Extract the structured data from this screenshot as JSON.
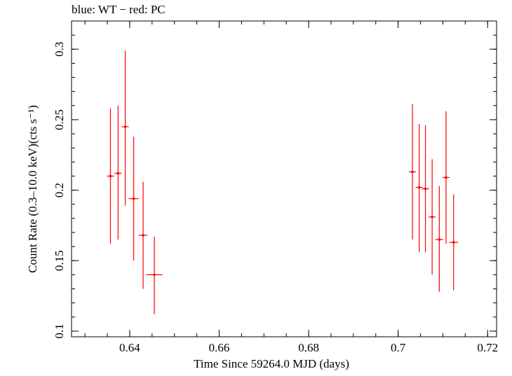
{
  "chart_data": {
    "type": "scatter",
    "title": "blue: WT − red: PC",
    "xlabel": "Time Since 59264.0 MJD (days)",
    "ylabel": "Count Rate (0.3–10.0 keV)(cts s⁻¹)",
    "xlim": [
      0.627,
      0.722
    ],
    "ylim": [
      0.096,
      0.32
    ],
    "x_ticks": [
      0.64,
      0.66,
      0.68,
      0.7,
      0.72
    ],
    "x_tick_labels": [
      "0.64",
      "0.66",
      "0.68",
      "0.7",
      "0.72"
    ],
    "y_ticks": [
      0.1,
      0.15,
      0.2,
      0.25,
      0.3
    ],
    "y_tick_labels": [
      "0.1",
      "0.15",
      "0.2",
      "0.25",
      "0.3"
    ],
    "grid": false,
    "series": [
      {
        "color": "#ff0000",
        "points": [
          {
            "x": 0.6357,
            "y": 0.21,
            "xerr": 0.0008,
            "ylo": 0.162,
            "yhi": 0.258
          },
          {
            "x": 0.6374,
            "y": 0.212,
            "xerr": 0.0008,
            "ylo": 0.165,
            "yhi": 0.26
          },
          {
            "x": 0.639,
            "y": 0.245,
            "xerr": 0.0008,
            "ylo": 0.189,
            "yhi": 0.299
          },
          {
            "x": 0.6409,
            "y": 0.194,
            "xerr": 0.0011,
            "ylo": 0.15,
            "yhi": 0.238
          },
          {
            "x": 0.643,
            "y": 0.168,
            "xerr": 0.001,
            "ylo": 0.13,
            "yhi": 0.206
          },
          {
            "x": 0.6455,
            "y": 0.14,
            "xerr": 0.0018,
            "ylo": 0.112,
            "yhi": 0.167
          },
          {
            "x": 0.7032,
            "y": 0.213,
            "xerr": 0.0008,
            "ylo": 0.165,
            "yhi": 0.261
          },
          {
            "x": 0.7047,
            "y": 0.202,
            "xerr": 0.0008,
            "ylo": 0.156,
            "yhi": 0.247
          },
          {
            "x": 0.7061,
            "y": 0.201,
            "xerr": 0.0008,
            "ylo": 0.156,
            "yhi": 0.246
          },
          {
            "x": 0.7076,
            "y": 0.181,
            "xerr": 0.0008,
            "ylo": 0.14,
            "yhi": 0.222
          },
          {
            "x": 0.7092,
            "y": 0.165,
            "xerr": 0.0009,
            "ylo": 0.128,
            "yhi": 0.203
          },
          {
            "x": 0.7107,
            "y": 0.209,
            "xerr": 0.0008,
            "ylo": 0.162,
            "yhi": 0.256
          },
          {
            "x": 0.7124,
            "y": 0.163,
            "xerr": 0.001,
            "ylo": 0.129,
            "yhi": 0.197
          }
        ]
      }
    ]
  }
}
